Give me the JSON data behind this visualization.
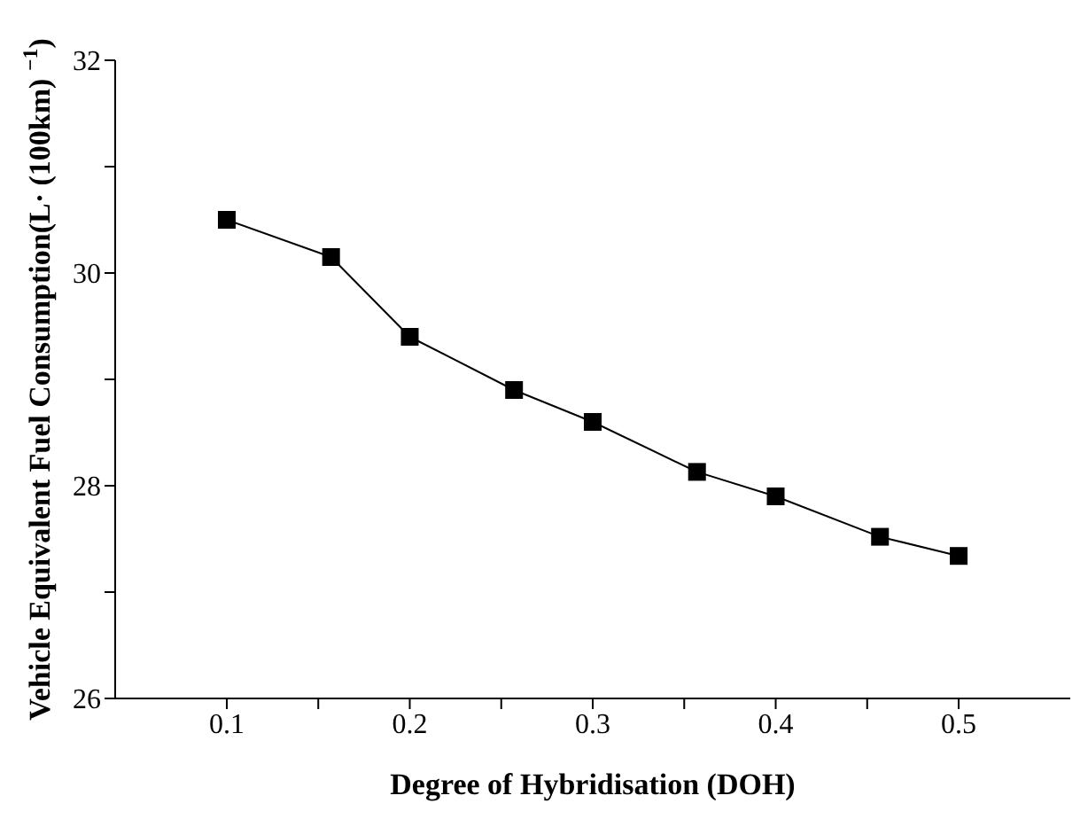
{
  "chart_data": {
    "type": "line",
    "xlabel": "Degree of Hybridisation (DOH)",
    "ylabel": "Vehicle Equivalent Fuel Consumption(L· (100km) $^{−1}$)",
    "x": [
      0.1,
      0.157,
      0.2,
      0.257,
      0.3,
      0.357,
      0.4,
      0.457,
      0.5
    ],
    "series": [
      {
        "color": "#000000",
        "values": [
          30.5,
          30.15,
          29.4,
          28.9,
          28.6,
          28.13,
          27.9,
          27.52,
          27.34
        ]
      }
    ],
    "xlim": [
      0.039,
      0.561
    ],
    "xticks": [
      0.1,
      {
        "value": 0.15,
        "label": null
      },
      0.2,
      {
        "value": 0.25,
        "label": null
      },
      0.3,
      {
        "value": 0.35,
        "label": null
      },
      0.4,
      {
        "value": 0.45,
        "label": null
      },
      0.5
    ],
    "ylim": [
      26,
      32
    ],
    "yticks": [
      26,
      {
        "value": 27,
        "label": null
      },
      28,
      {
        "value": 29,
        "label": null
      },
      30,
      {
        "value": 31,
        "label": null
      },
      32
    ],
    "marker": "square",
    "line_style": "solid",
    "grid": false,
    "legend": false
  }
}
